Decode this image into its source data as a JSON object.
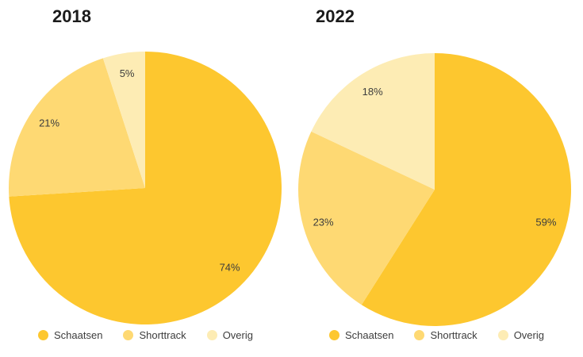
{
  "page": {
    "background": "#ffffff",
    "title_color": "#1b1b1b",
    "label_color": "#3d3d3d"
  },
  "chart_data": [
    {
      "type": "pie",
      "title": "2018",
      "categories": [
        "Schaatsen",
        "Shorttrack",
        "Overig"
      ],
      "values": [
        74,
        21,
        5
      ],
      "display_labels": [
        "74%",
        "21%",
        "5%"
      ],
      "colors": [
        "#FDC72F",
        "#FED973",
        "#FDECB4"
      ],
      "value_suffix": "%",
      "start_angle_deg": 0,
      "direction": "clockwise",
      "legend_position": "bottom",
      "legend": [
        "Schaatsen",
        "Shorttrack",
        "Overig"
      ]
    },
    {
      "type": "pie",
      "title": "2022",
      "categories": [
        "Schaatsen",
        "Shorttrack",
        "Overig"
      ],
      "values": [
        59,
        23,
        18
      ],
      "display_labels": [
        "59%",
        "23%",
        "18%"
      ],
      "colors": [
        "#FDC72F",
        "#FED973",
        "#FDECB4"
      ],
      "value_suffix": "%",
      "start_angle_deg": 0,
      "direction": "clockwise",
      "legend_position": "bottom",
      "legend": [
        "Schaatsen",
        "Shorttrack",
        "Overig"
      ]
    }
  ]
}
